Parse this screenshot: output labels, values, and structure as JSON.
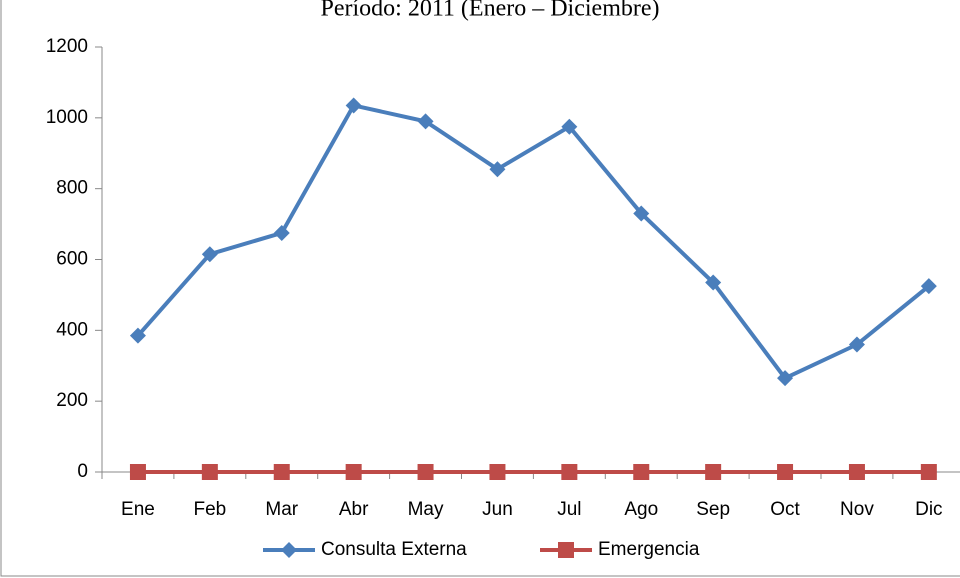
{
  "chart_data": {
    "type": "line",
    "title": "Período: 2011 (Enero – Diciembre)",
    "categories": [
      "Ene",
      "Feb",
      "Mar",
      "Abr",
      "May",
      "Jun",
      "Jul",
      "Ago",
      "Sep",
      "Oct",
      "Nov",
      "Dic"
    ],
    "series": [
      {
        "name": "Consulta Externa",
        "color": "#4a7ebb",
        "marker": "diamond",
        "values": [
          385,
          615,
          675,
          1035,
          990,
          855,
          975,
          730,
          535,
          265,
          360,
          525
        ]
      },
      {
        "name": "Emergencia",
        "color": "#be4b48",
        "marker": "square",
        "values": [
          0,
          0,
          0,
          0,
          0,
          0,
          0,
          0,
          0,
          0,
          0,
          0
        ]
      }
    ],
    "ylim": [
      0,
      1200
    ],
    "yticks": [
      0,
      200,
      400,
      600,
      800,
      1000,
      1200
    ],
    "grid": false,
    "legend": "bottom"
  }
}
